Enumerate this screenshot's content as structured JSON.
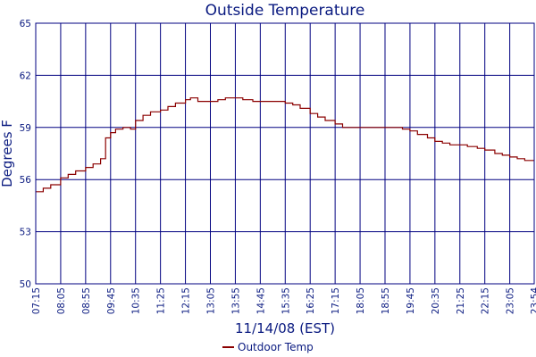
{
  "chart_data": {
    "type": "line",
    "title": "Outside Temperature",
    "xlabel": "11/14/08 (EST)",
    "ylabel": "Degrees F",
    "ylim": [
      50,
      65
    ],
    "yticks": [
      50,
      53,
      56,
      59,
      62,
      65
    ],
    "categories": [
      "07:15",
      "08:05",
      "08:55",
      "09:45",
      "10:35",
      "11:25",
      "12:15",
      "13:05",
      "13:55",
      "14:45",
      "15:35",
      "16:25",
      "17:15",
      "18:05",
      "18:55",
      "19:45",
      "20:35",
      "21:25",
      "22:15",
      "23:05",
      "23:54"
    ],
    "grid": true,
    "legend_position": "bottom-center",
    "series": [
      {
        "name": "Outdoor Temp",
        "color": "#8b0000",
        "x": [
          "07:15",
          "07:30",
          "07:45",
          "08:05",
          "08:20",
          "08:35",
          "08:55",
          "09:10",
          "09:25",
          "09:35",
          "09:45",
          "09:55",
          "10:10",
          "10:25",
          "10:35",
          "10:50",
          "11:05",
          "11:25",
          "11:40",
          "11:55",
          "12:15",
          "12:25",
          "12:40",
          "13:05",
          "13:20",
          "13:35",
          "13:55",
          "14:10",
          "14:30",
          "14:45",
          "15:00",
          "15:15",
          "15:35",
          "15:50",
          "16:05",
          "16:25",
          "16:40",
          "16:55",
          "17:15",
          "17:30",
          "17:45",
          "18:05",
          "18:20",
          "18:35",
          "18:55",
          "19:10",
          "19:30",
          "19:45",
          "20:00",
          "20:20",
          "20:35",
          "20:50",
          "21:05",
          "21:25",
          "21:40",
          "22:00",
          "22:15",
          "22:35",
          "22:50",
          "23:05",
          "23:20",
          "23:35",
          "23:54"
        ],
        "values": [
          55.3,
          55.5,
          55.7,
          56.1,
          56.3,
          56.5,
          56.7,
          56.9,
          57.2,
          58.4,
          58.7,
          58.9,
          59.0,
          58.9,
          59.4,
          59.7,
          59.9,
          60.0,
          60.2,
          60.4,
          60.6,
          60.7,
          60.5,
          60.5,
          60.6,
          60.7,
          60.7,
          60.6,
          60.5,
          60.5,
          60.5,
          60.5,
          60.4,
          60.3,
          60.1,
          59.8,
          59.6,
          59.4,
          59.2,
          59.0,
          59.0,
          59.0,
          59.0,
          59.0,
          59.0,
          59.0,
          58.9,
          58.8,
          58.6,
          58.4,
          58.2,
          58.1,
          58.0,
          58.0,
          57.9,
          57.8,
          57.7,
          57.5,
          57.4,
          57.3,
          57.2,
          57.1,
          57.1
        ]
      }
    ]
  }
}
